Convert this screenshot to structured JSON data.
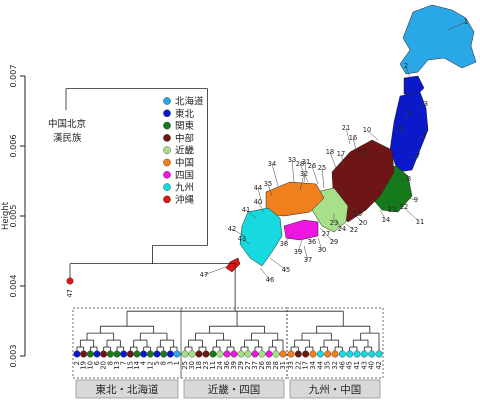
{
  "chart_data": {
    "type": "dendrogram",
    "ylabel": "Height",
    "ylim": [
      0.003,
      0.007
    ],
    "yticks": [
      "0.003",
      "0.004",
      "0.005",
      "0.006",
      "0.007"
    ],
    "root_height": 0.00682,
    "outgroup": {
      "label_line1": "中国北京",
      "label_line2": "漢民族"
    },
    "japan_merge_height": 0.00458,
    "okinawa_merge_height": 0.00432,
    "regions": [
      {
        "name": "北海道",
        "color": "#2aa7e6"
      },
      {
        "name": "東北",
        "color": "#0a19c9"
      },
      {
        "name": "関東",
        "color": "#177a1a"
      },
      {
        "name": "中部",
        "color": "#6e1515"
      },
      {
        "name": "近畿",
        "color": "#a8e08a"
      },
      {
        "name": "中国",
        "color": "#f07f1e"
      },
      {
        "name": "四国",
        "color": "#ee16e0"
      },
      {
        "name": "九州",
        "color": "#16dadf"
      },
      {
        "name": "沖縄",
        "color": "#e01212"
      }
    ],
    "okinawa_leaf": {
      "label": "47",
      "region": 8
    },
    "clusters": [
      {
        "label": "東北・北海道",
        "merge_height": 0.00364,
        "leaves": [
          {
            "label": "2",
            "region": 1
          },
          {
            "label": "19",
            "region": 3
          },
          {
            "label": "10",
            "region": 2
          },
          {
            "label": "6",
            "region": 1
          },
          {
            "label": "20",
            "region": 3
          },
          {
            "label": "8",
            "region": 2
          },
          {
            "label": "13",
            "region": 2
          },
          {
            "label": "7",
            "region": 1
          },
          {
            "label": "15",
            "region": 3
          },
          {
            "label": "14",
            "region": 2
          },
          {
            "label": "4",
            "region": 1
          },
          {
            "label": "12",
            "region": 2
          },
          {
            "label": "5",
            "region": 1
          },
          {
            "label": "8",
            "region": 2
          },
          {
            "label": "3",
            "region": 1
          },
          {
            "label": "1",
            "region": 0
          }
        ]
      },
      {
        "label": "近畿・四国",
        "merge_height": 0.00364,
        "leaves": [
          {
            "label": "25",
            "region": 4
          },
          {
            "label": "30",
            "region": 4
          },
          {
            "label": "18",
            "region": 3
          },
          {
            "label": "23",
            "region": 3
          },
          {
            "label": "11",
            "region": 2
          },
          {
            "label": "24",
            "region": 4
          },
          {
            "label": "36",
            "region": 6
          },
          {
            "label": "39",
            "region": 6
          },
          {
            "label": "29",
            "region": 4
          },
          {
            "label": "27",
            "region": 4
          },
          {
            "label": "37",
            "region": 6
          },
          {
            "label": "26",
            "region": 4
          },
          {
            "label": "38",
            "region": 6
          },
          {
            "label": "28",
            "region": 4
          },
          {
            "label": "31",
            "region": 5
          }
        ]
      },
      {
        "label": "九州・中国",
        "merge_height": 0.00364,
        "leaves": [
          {
            "label": "33",
            "region": 5
          },
          {
            "label": "22",
            "region": 3
          },
          {
            "label": "17",
            "region": 3
          },
          {
            "label": "34",
            "region": 5
          },
          {
            "label": "44",
            "region": 7
          },
          {
            "label": "35",
            "region": 5
          },
          {
            "label": "32",
            "region": 5
          },
          {
            "label": "46",
            "region": 7
          },
          {
            "label": "45",
            "region": 7
          },
          {
            "label": "41",
            "region": 7
          },
          {
            "label": "43",
            "region": 7
          },
          {
            "label": "40",
            "region": 7
          },
          {
            "label": "42",
            "region": 7
          }
        ]
      }
    ],
    "map_labels": [
      "1",
      "2",
      "3",
      "4",
      "5",
      "6",
      "7",
      "8",
      "9",
      "10",
      "11",
      "12",
      "13",
      "14",
      "15",
      "16",
      "17",
      "18",
      "19",
      "20",
      "21",
      "22",
      "23",
      "24",
      "25",
      "26",
      "27",
      "28",
      "29",
      "30",
      "31",
      "32",
      "33",
      "34",
      "35",
      "36",
      "37",
      "38",
      "39",
      "40",
      "41",
      "42",
      "43",
      "44",
      "45",
      "46",
      "47"
    ]
  }
}
